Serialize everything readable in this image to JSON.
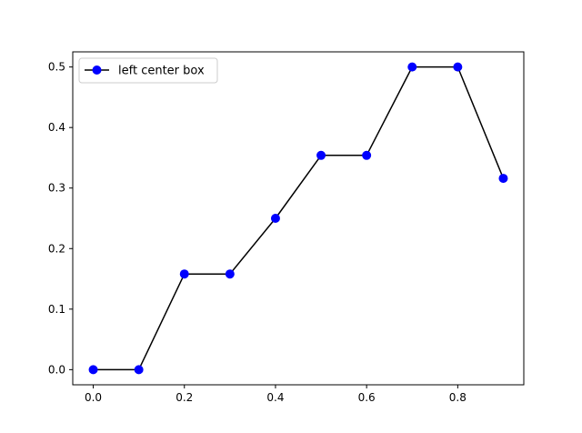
{
  "chart_data": {
    "type": "line",
    "title": "",
    "xlabel": "",
    "ylabel": "",
    "xlim": [
      -0.045,
      0.945
    ],
    "ylim": [
      -0.025,
      0.525
    ],
    "x_ticks": [
      0.0,
      0.2,
      0.4,
      0.6,
      0.8
    ],
    "x_tick_labels": [
      "0.0",
      "0.2",
      "0.4",
      "0.6",
      "0.8"
    ],
    "y_ticks": [
      0.0,
      0.1,
      0.2,
      0.3,
      0.4,
      0.5
    ],
    "y_tick_labels": [
      "0.0",
      "0.1",
      "0.2",
      "0.3",
      "0.4",
      "0.5"
    ],
    "grid": false,
    "legend": {
      "position": "upper-left"
    },
    "series": [
      {
        "name": "left center box",
        "line_color": "#000000",
        "marker_color": "#0000ff",
        "marker": "circle",
        "x": [
          0.0,
          0.1,
          0.2,
          0.3,
          0.4,
          0.5,
          0.6,
          0.7,
          0.8,
          0.9
        ],
        "y": [
          0.0,
          0.0,
          0.158,
          0.158,
          0.25,
          0.354,
          0.354,
          0.5,
          0.5,
          0.316
        ]
      }
    ]
  }
}
